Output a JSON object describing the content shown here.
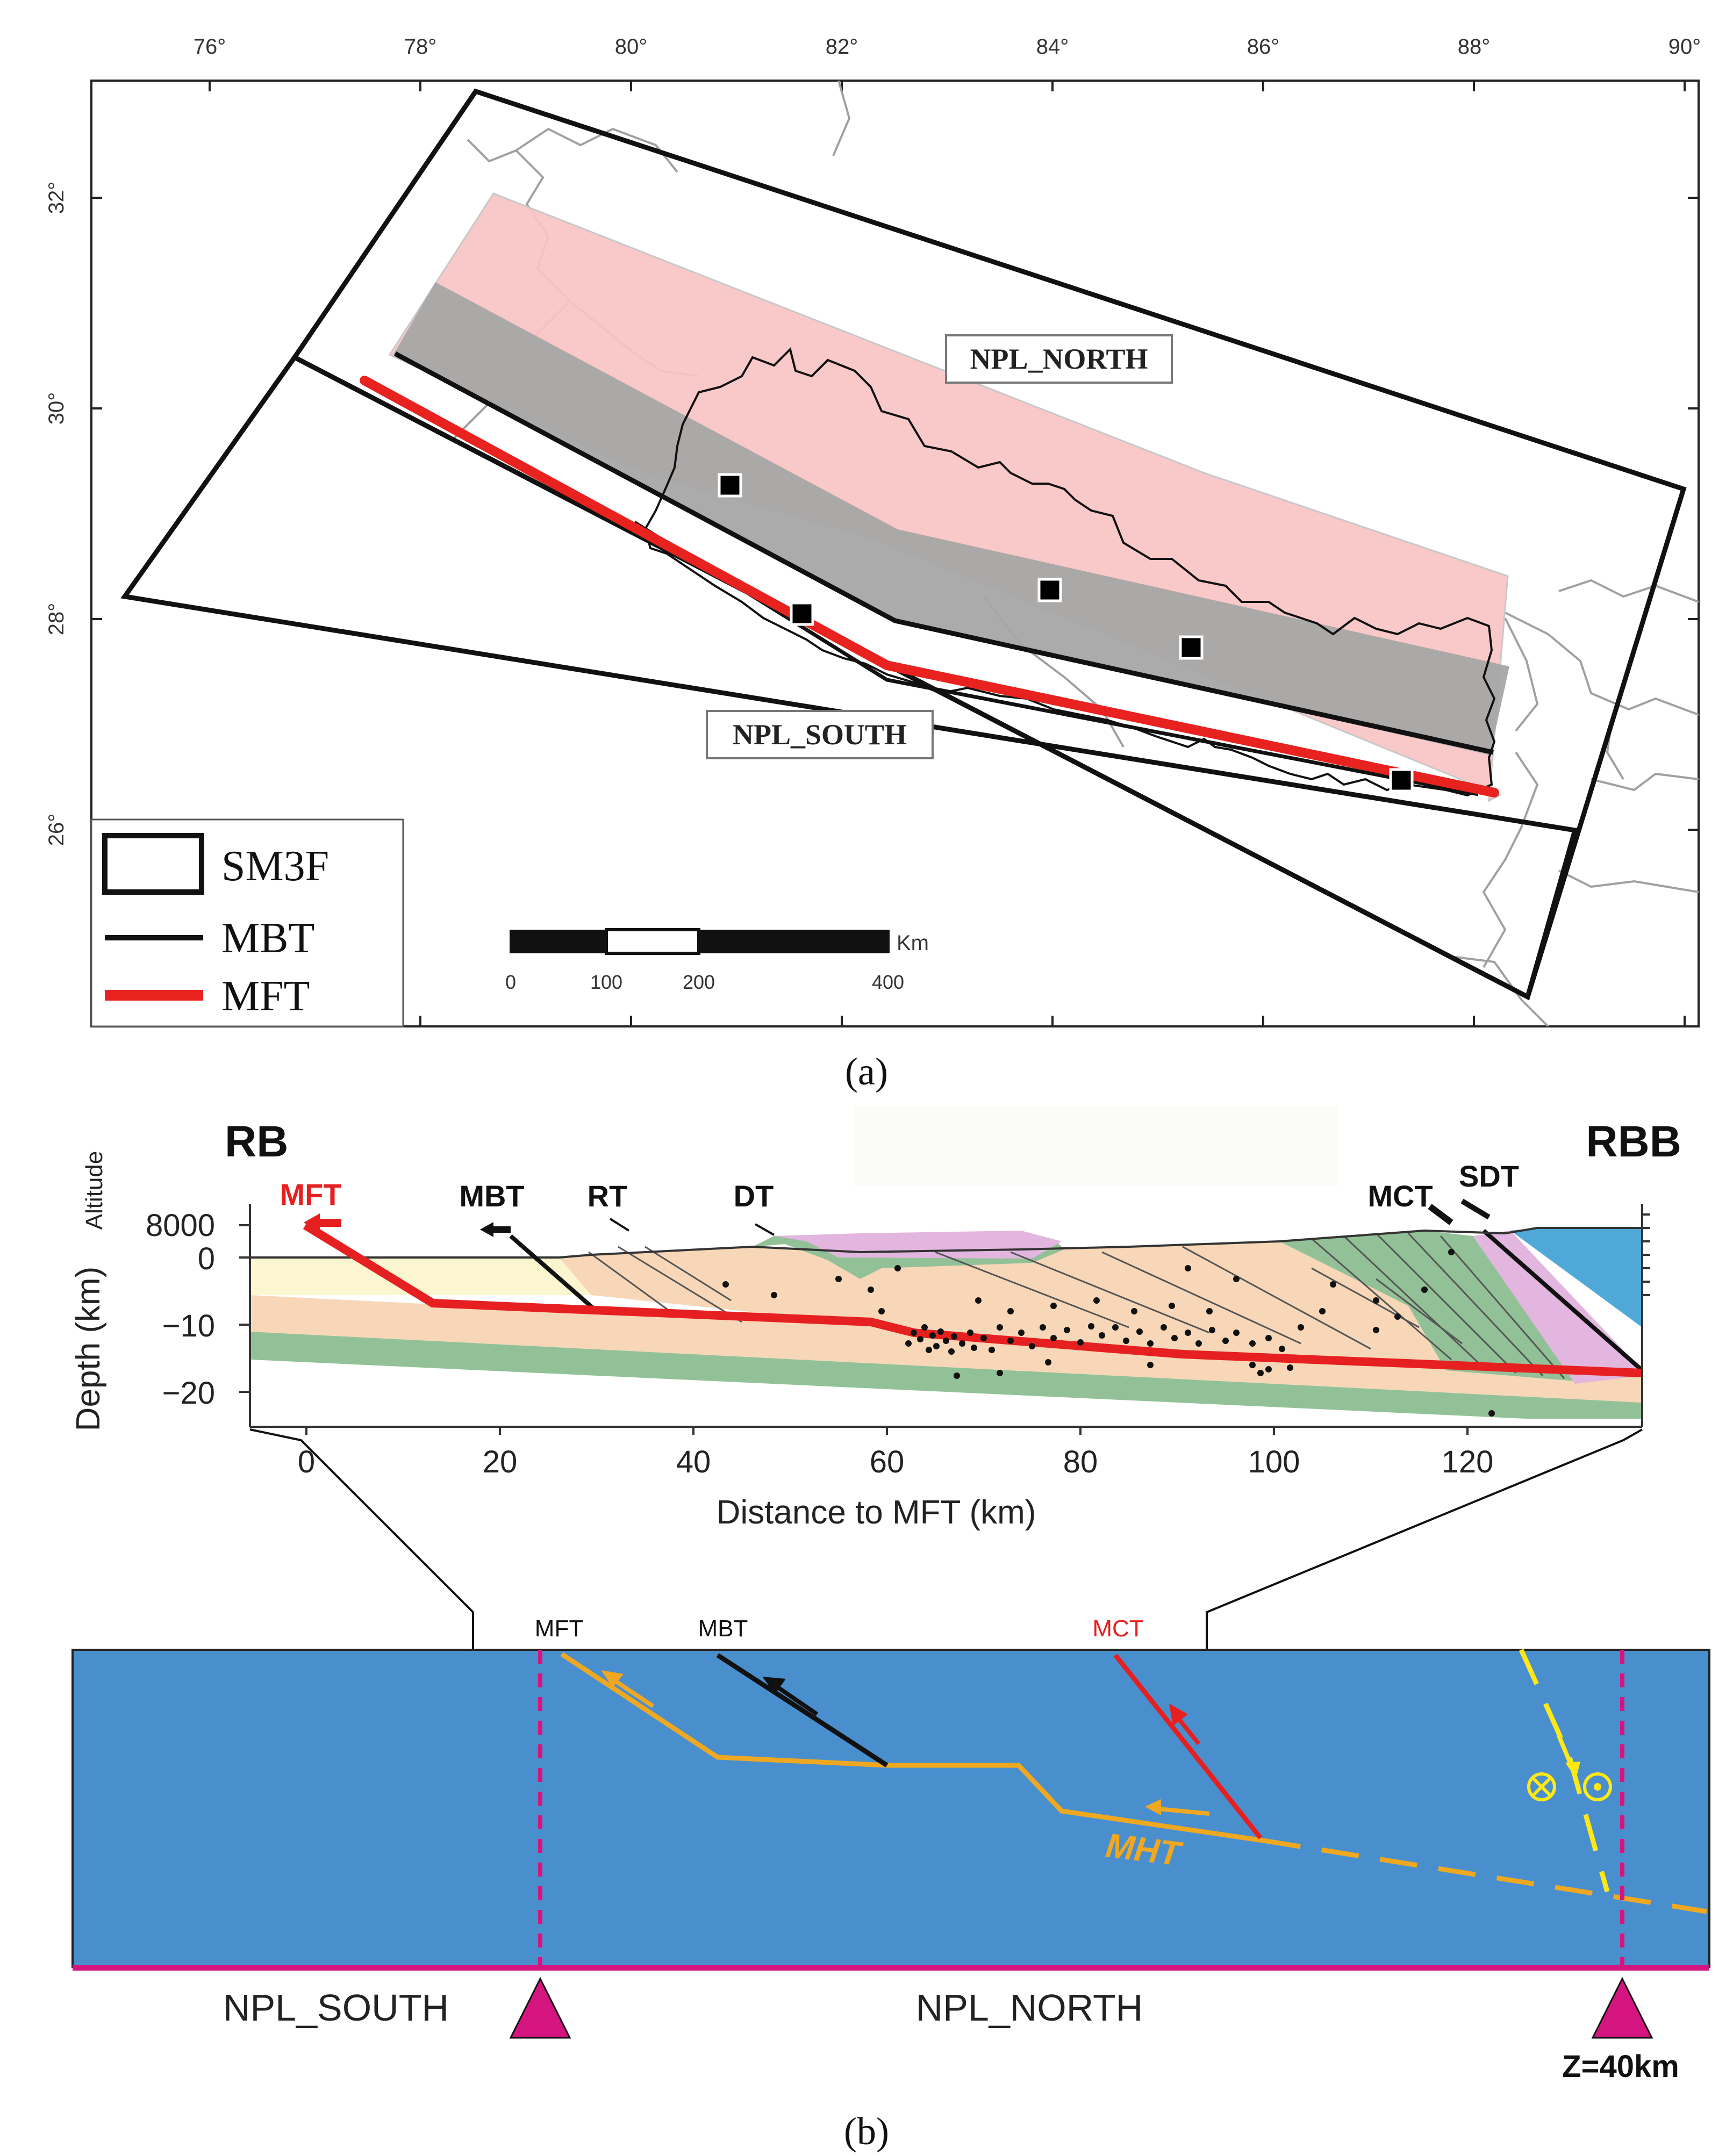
{
  "panel_a": {
    "label": "(a)",
    "lon_ticks": [
      "76°",
      "78°",
      "80°",
      "82°",
      "84°",
      "86°",
      "88°",
      "90°"
    ],
    "lat_ticks": [
      "32°",
      "30°",
      "28°",
      "26°"
    ],
    "zone_north": "NPL_NORTH",
    "zone_south": "NPL_SOUTH",
    "legend": {
      "box": "SM3F",
      "black_line": "MBT",
      "red_line": "MFT"
    },
    "scale": {
      "unit": "Km",
      "ticks": [
        "0",
        "100",
        "200",
        "400"
      ]
    },
    "colors": {
      "source_zone": "#f8c3c3",
      "mbt_band": "#a8a8a8",
      "mft": "#e8231f"
    }
  },
  "panel_b": {
    "label": "(b)",
    "left_title": "RB",
    "right_title": "RBB",
    "fault_labels": {
      "mft": "MFT",
      "mbt": "MBT",
      "rt": "RT",
      "dt": "DT",
      "mct": "MCT",
      "sdt": "SDT"
    },
    "altitude_axis": {
      "label": "Altitude",
      "tick_8000": "8000",
      "tick_0": "0"
    },
    "depth_axis": {
      "label": "Depth (km)",
      "ticks": [
        "0",
        "−10",
        "−20"
      ]
    },
    "x_axis": {
      "label": "Distance to MFT (km)",
      "ticks": [
        "0",
        "20",
        "40",
        "60",
        "80",
        "100",
        "120"
      ]
    },
    "section": {
      "labels": {
        "mft": "MFT",
        "mbt": "MBT",
        "mct": "MCT",
        "mht": "MHT"
      },
      "zone_south": "NPL_SOUTH",
      "zone_north": "NPL_NORTH",
      "depth_label": "Z=40km",
      "colors": {
        "background": "#4a8fcd",
        "mht": "#f0a820",
        "marker": "#d4157f"
      }
    }
  }
}
